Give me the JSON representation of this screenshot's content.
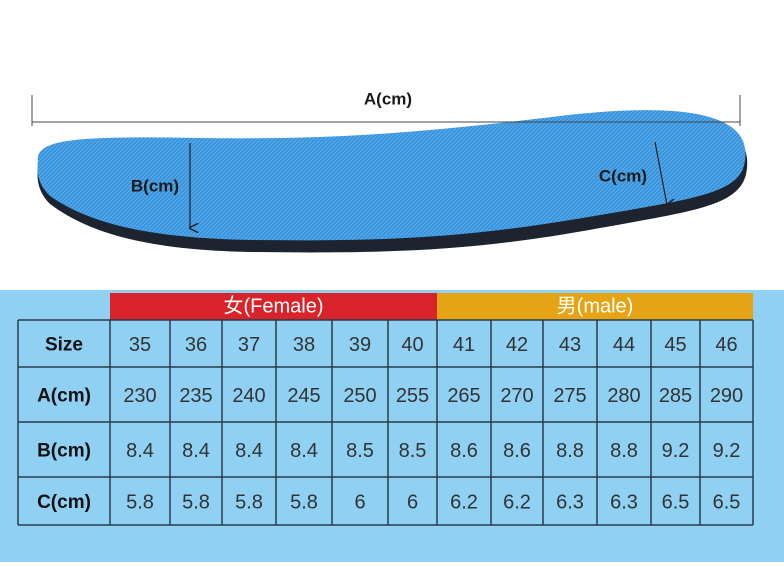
{
  "diagram": {
    "length_label": "A(cm)",
    "heel_label": "B(cm)",
    "toe_label": "C(cm)"
  },
  "table": {
    "groups": [
      "女(Female)",
      "男(male)"
    ],
    "rows": [
      {
        "label": "Size",
        "values": [
          35,
          36,
          37,
          38,
          39,
          40,
          41,
          42,
          43,
          44,
          45,
          46
        ]
      },
      {
        "label": "A(cm)",
        "values": [
          230,
          235,
          240,
          245,
          250,
          255,
          265,
          270,
          275,
          280,
          285,
          290
        ]
      },
      {
        "label": "B(cm)",
        "values": [
          8.4,
          8.4,
          8.4,
          8.4,
          8.5,
          8.5,
          8.6,
          8.6,
          8.8,
          8.8,
          9.2,
          9.2
        ]
      },
      {
        "label": "C(cm)",
        "values": [
          5.8,
          5.8,
          5.8,
          5.8,
          6,
          6,
          6.2,
          6.2,
          6.3,
          6.3,
          6.5,
          6.5
        ]
      }
    ]
  }
}
